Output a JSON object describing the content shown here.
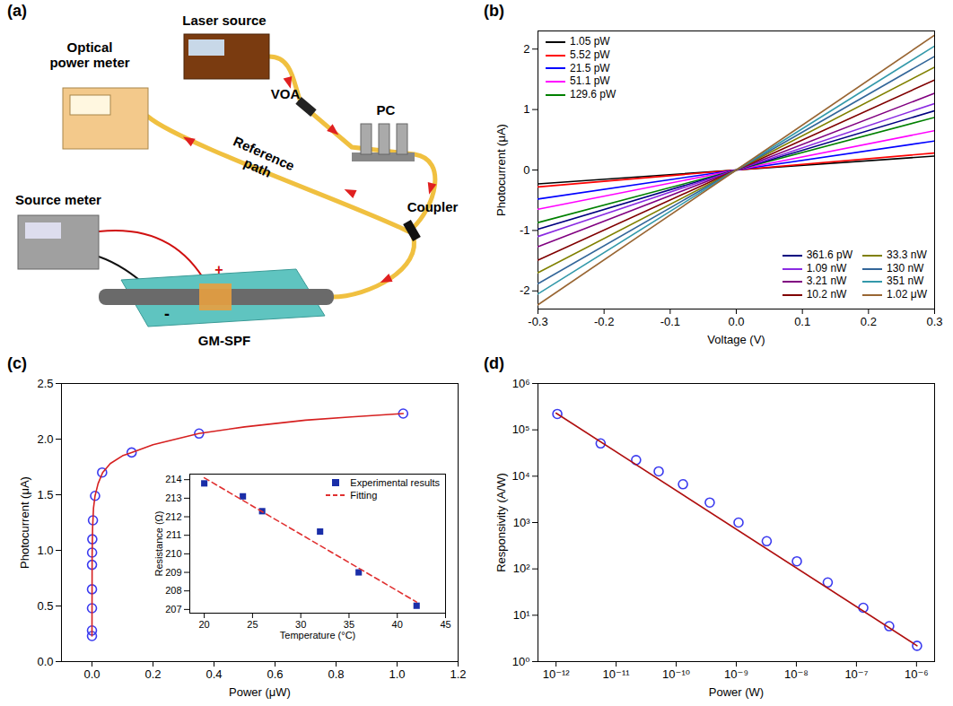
{
  "diagram": {
    "panel": "(a)",
    "components": [
      "Laser source",
      "VOA",
      "PC",
      "Coupler",
      "Optical power meter",
      "Source meter",
      "GM-SPF"
    ],
    "path_labels": [
      "Reference path"
    ],
    "terminals": [
      "+",
      "-"
    ]
  },
  "chart_data": [
    {
      "panel": "(b)",
      "type": "line",
      "xlabel": "Voltage (V)",
      "ylabel": "Photocurrent (μA)",
      "x": [
        -0.3,
        0,
        0.3
      ],
      "series": [
        {
          "name": "1.05 pW",
          "color": "#000000",
          "values": [
            -0.23,
            0,
            0.23
          ]
        },
        {
          "name": "5.52 pW",
          "color": "#ff0000",
          "values": [
            -0.28,
            0,
            0.28
          ]
        },
        {
          "name": "21.5 pW",
          "color": "#0000ff",
          "values": [
            -0.48,
            0,
            0.48
          ]
        },
        {
          "name": "51.1 pW",
          "color": "#ff00ff",
          "values": [
            -0.65,
            0,
            0.65
          ]
        },
        {
          "name": "129.6 pW",
          "color": "#008000",
          "values": [
            -0.87,
            0,
            0.87
          ]
        },
        {
          "name": "361.6 pW",
          "color": "#000080",
          "values": [
            -0.98,
            0,
            0.98
          ]
        },
        {
          "name": "1.09 nW",
          "color": "#8a2be2",
          "values": [
            -1.1,
            0,
            1.1
          ]
        },
        {
          "name": "3.21 nW",
          "color": "#800080",
          "values": [
            -1.27,
            0,
            1.27
          ]
        },
        {
          "name": "10.2 nW",
          "color": "#800000",
          "values": [
            -1.49,
            0,
            1.49
          ]
        },
        {
          "name": "33.3 nW",
          "color": "#808000",
          "values": [
            -1.7,
            0,
            1.7
          ]
        },
        {
          "name": "130 nW",
          "color": "#336699",
          "values": [
            -1.88,
            0,
            1.88
          ]
        },
        {
          "name": "351 nW",
          "color": "#3399aa",
          "values": [
            -2.05,
            0,
            2.05
          ]
        },
        {
          "name": "1.02 μW",
          "color": "#996633",
          "values": [
            -2.23,
            0,
            2.23
          ]
        }
      ],
      "xlim": [
        -0.3,
        0.3
      ],
      "xticks": [
        -0.3,
        -0.2,
        -0.1,
        {
          "value": 0,
          "label": "0.0"
        },
        0.1,
        0.2,
        0.3
      ],
      "ylim": [
        -2.3,
        2.3
      ],
      "yticks": [
        -2,
        -1,
        0,
        1,
        2
      ],
      "legend": [
        "upper left",
        "lower right"
      ]
    },
    {
      "panel": "(c)",
      "type": "scatter",
      "xlabel": "Power (μW)",
      "ylabel": "Photocurrent (μA)",
      "series": [
        {
          "type": "scatter",
          "marker": "circle",
          "color": "#3b3bef",
          "x": [
            1.05e-06,
            5.52e-06,
            2.15e-05,
            5.11e-05,
            0.0001296,
            0.0003616,
            0.00109,
            0.00321,
            0.0102,
            0.0333,
            0.13,
            0.351,
            1.02
          ],
          "values": [
            0.23,
            0.28,
            0.48,
            0.65,
            0.87,
            0.98,
            1.1,
            1.27,
            1.49,
            1.7,
            1.88,
            2.05,
            2.23
          ]
        },
        {
          "type": "line",
          "color": "#d62020",
          "x": [
            0,
            0.0005,
            0.002,
            0.005,
            0.01,
            0.02,
            0.035,
            0.06,
            0.1,
            0.13,
            0.2,
            0.35,
            0.5,
            0.7,
            0.85,
            1.02
          ],
          "values": [
            0.23,
            0.95,
            1.2,
            1.38,
            1.49,
            1.6,
            1.7,
            1.78,
            1.85,
            1.88,
            1.95,
            2.05,
            2.11,
            2.17,
            2.2,
            2.23
          ]
        }
      ],
      "xlim": [
        -0.1,
        1.2
      ],
      "xticks": [
        {
          "value": 0,
          "label": "0.0"
        },
        0.2,
        0.4,
        0.6,
        0.8,
        {
          "value": 1,
          "label": "1.0"
        },
        1.2
      ],
      "ylim": [
        0,
        2.5
      ],
      "yticks": [
        {
          "value": 0,
          "label": "0.0"
        },
        0.5,
        {
          "value": 1,
          "label": "1.0"
        },
        1.5,
        {
          "value": 2,
          "label": "2.0"
        },
        2.5
      ],
      "inset": {
        "type": "scatter",
        "xlabel": "Temperature (°C)",
        "ylabel": "Resistance (Ω)",
        "series": [
          {
            "name": "Experimental results",
            "type": "scatter",
            "marker": "square",
            "color": "#1a2ea8",
            "x": [
              20,
              24,
              26,
              32,
              36,
              42
            ],
            "values": [
              213.8,
              213.1,
              212.3,
              211.2,
              209.0,
              207.2
            ]
          },
          {
            "name": "Fitting",
            "type": "line",
            "line_style": "dashed",
            "color": "#e03030",
            "x": [
              20,
              42
            ],
            "values": [
              214.1,
              207.4
            ]
          }
        ],
        "xlim": [
          18.5,
          45
        ],
        "xticks": [
          20,
          25,
          30,
          35,
          40,
          45
        ],
        "ylim": [
          206.8,
          214.3
        ],
        "yticks": [
          207,
          208,
          209,
          210,
          211,
          212,
          213,
          214
        ],
        "legend": "upper right"
      }
    },
    {
      "panel": "(d)",
      "type": "scatter",
      "log": true,
      "xlabel": "Power (W)",
      "ylabel": "Responsivity (A/W)",
      "series": [
        {
          "type": "scatter",
          "marker": "circle",
          "color": "#3b3bef",
          "x": [
            1.05e-12,
            5.52e-12,
            2.15e-11,
            5.11e-11,
            1.296e-10,
            3.616e-10,
            1.09e-09,
            3.21e-09,
            1.02e-08,
            3.33e-08,
            1.3e-07,
            3.51e-07,
            1.02e-06
          ],
          "values": [
            220000,
            51000,
            22300,
            12700,
            6700,
            2700,
            1000,
            396,
            146,
            51,
            14.5,
            5.8,
            2.19
          ]
        },
        {
          "type": "line",
          "color": "#b01010",
          "x": [
            1e-12,
            1.02e-06
          ],
          "values": [
            230000,
            2.2
          ]
        }
      ],
      "xlim": [
        5e-13,
        2e-06
      ],
      "xticks": [
        {
          "value": 1e-12,
          "label": "10⁻¹²"
        },
        {
          "value": 1e-11,
          "label": "10⁻¹¹"
        },
        {
          "value": 1e-10,
          "label": "10⁻¹⁰"
        },
        {
          "value": 1e-09,
          "label": "10⁻⁹"
        },
        {
          "value": 1e-08,
          "label": "10⁻⁸"
        },
        {
          "value": 1e-07,
          "label": "10⁻⁷"
        },
        {
          "value": 1e-06,
          "label": "10⁻⁶"
        }
      ],
      "ylim": [
        1,
        1000000
      ],
      "yticks": [
        {
          "value": 1,
          "label": "10⁰"
        },
        {
          "value": 10,
          "label": "10¹"
        },
        {
          "value": 100,
          "label": "10²"
        },
        {
          "value": 1000,
          "label": "10³"
        },
        {
          "value": 10000,
          "label": "10⁴"
        },
        {
          "value": 100000,
          "label": "10⁵"
        },
        {
          "value": 1000000,
          "label": "10⁶"
        }
      ]
    }
  ]
}
